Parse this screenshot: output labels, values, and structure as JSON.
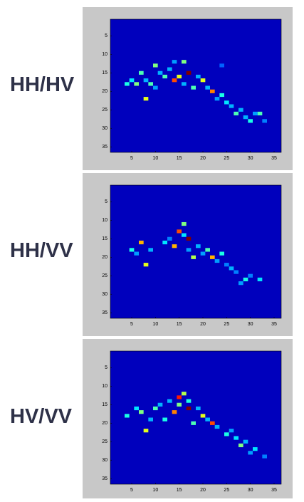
{
  "chart_data": [
    {
      "type": "heatmap",
      "label": "HH/HV",
      "xlim": [
        0.5,
        36.5
      ],
      "ylim": [
        0.5,
        36.5
      ],
      "xticks": [
        5,
        10,
        15,
        20,
        25,
        30,
        35
      ],
      "yticks": [
        5,
        10,
        15,
        20,
        25,
        30,
        35
      ],
      "background": 0.06,
      "cells": [
        [
          17,
          15,
          1.0
        ],
        [
          14,
          17,
          0.8
        ],
        [
          15,
          16,
          0.6
        ],
        [
          22,
          20,
          0.75
        ],
        [
          20,
          17,
          0.6
        ],
        [
          16,
          12,
          0.5
        ],
        [
          10,
          13,
          0.5
        ],
        [
          6,
          18,
          0.5
        ],
        [
          8,
          22,
          0.6
        ],
        [
          7,
          15,
          0.45
        ],
        [
          12,
          16,
          0.45
        ],
        [
          18,
          19,
          0.45
        ],
        [
          24,
          21,
          0.4
        ],
        [
          27,
          26,
          0.45
        ],
        [
          32,
          26,
          0.45
        ],
        [
          30,
          28,
          0.4
        ],
        [
          25,
          23,
          0.35
        ],
        [
          9,
          18,
          0.45
        ],
        [
          4,
          18,
          0.4
        ],
        [
          5,
          17,
          0.35
        ],
        [
          11,
          15,
          0.3
        ],
        [
          13,
          14,
          0.3
        ],
        [
          19,
          16,
          0.3
        ],
        [
          21,
          19,
          0.3
        ],
        [
          23,
          22,
          0.28
        ],
        [
          26,
          24,
          0.3
        ],
        [
          28,
          25,
          0.3
        ],
        [
          29,
          27,
          0.3
        ],
        [
          31,
          26,
          0.28
        ],
        [
          33,
          28,
          0.25
        ],
        [
          10,
          19,
          0.28
        ],
        [
          8,
          17,
          0.3
        ],
        [
          16,
          18,
          0.3
        ],
        [
          24,
          13,
          0.22
        ],
        [
          14,
          12,
          0.28
        ]
      ]
    },
    {
      "type": "heatmap",
      "label": "HH/VV",
      "xlim": [
        0.5,
        36.5
      ],
      "ylim": [
        0.5,
        36.5
      ],
      "xticks": [
        5,
        10,
        15,
        20,
        25,
        30,
        35
      ],
      "yticks": [
        5,
        10,
        15,
        20,
        25,
        30,
        35
      ],
      "background": 0.06,
      "cells": [
        [
          17,
          15,
          1.0
        ],
        [
          15,
          13,
          0.8
        ],
        [
          14,
          17,
          0.7
        ],
        [
          7,
          16,
          0.7
        ],
        [
          8,
          22,
          0.6
        ],
        [
          22,
          20,
          0.7
        ],
        [
          16,
          11,
          0.5
        ],
        [
          18,
          20,
          0.55
        ],
        [
          21,
          18,
          0.45
        ],
        [
          24,
          19,
          0.4
        ],
        [
          5,
          18,
          0.4
        ],
        [
          29,
          26,
          0.4
        ],
        [
          32,
          26,
          0.35
        ],
        [
          26,
          23,
          0.3
        ],
        [
          12,
          16,
          0.35
        ],
        [
          16,
          14,
          0.35
        ],
        [
          19,
          17,
          0.3
        ],
        [
          20,
          19,
          0.28
        ],
        [
          23,
          21,
          0.28
        ],
        [
          25,
          22,
          0.25
        ],
        [
          27,
          24,
          0.25
        ],
        [
          28,
          27,
          0.28
        ],
        [
          30,
          25,
          0.25
        ],
        [
          9,
          18,
          0.3
        ],
        [
          6,
          19,
          0.28
        ],
        [
          13,
          15,
          0.25
        ],
        [
          17,
          18,
          0.28
        ]
      ]
    },
    {
      "type": "heatmap",
      "label": "HV/VV",
      "xlim": [
        0.5,
        36.5
      ],
      "ylim": [
        0.5,
        36.5
      ],
      "xticks": [
        5,
        10,
        15,
        20,
        25,
        30,
        35
      ],
      "yticks": [
        5,
        10,
        15,
        20,
        25,
        30,
        35
      ],
      "background": 0.06,
      "cells": [
        [
          17,
          16,
          1.0
        ],
        [
          15,
          13,
          0.85
        ],
        [
          14,
          17,
          0.75
        ],
        [
          22,
          20,
          0.8
        ],
        [
          20,
          18,
          0.6
        ],
        [
          16,
          12,
          0.55
        ],
        [
          8,
          22,
          0.6
        ],
        [
          7,
          17,
          0.5
        ],
        [
          10,
          16,
          0.45
        ],
        [
          4,
          18,
          0.4
        ],
        [
          12,
          19,
          0.4
        ],
        [
          18,
          20,
          0.45
        ],
        [
          28,
          26,
          0.5
        ],
        [
          25,
          23,
          0.4
        ],
        [
          31,
          27,
          0.35
        ],
        [
          27,
          24,
          0.35
        ],
        [
          15,
          15,
          0.5
        ],
        [
          13,
          14,
          0.3
        ],
        [
          11,
          15,
          0.3
        ],
        [
          19,
          16,
          0.3
        ],
        [
          21,
          19,
          0.3
        ],
        [
          23,
          21,
          0.3
        ],
        [
          26,
          22,
          0.28
        ],
        [
          29,
          25,
          0.3
        ],
        [
          30,
          28,
          0.28
        ],
        [
          33,
          29,
          0.25
        ],
        [
          6,
          16,
          0.35
        ],
        [
          9,
          19,
          0.3
        ],
        [
          17,
          14,
          0.4
        ]
      ]
    }
  ]
}
